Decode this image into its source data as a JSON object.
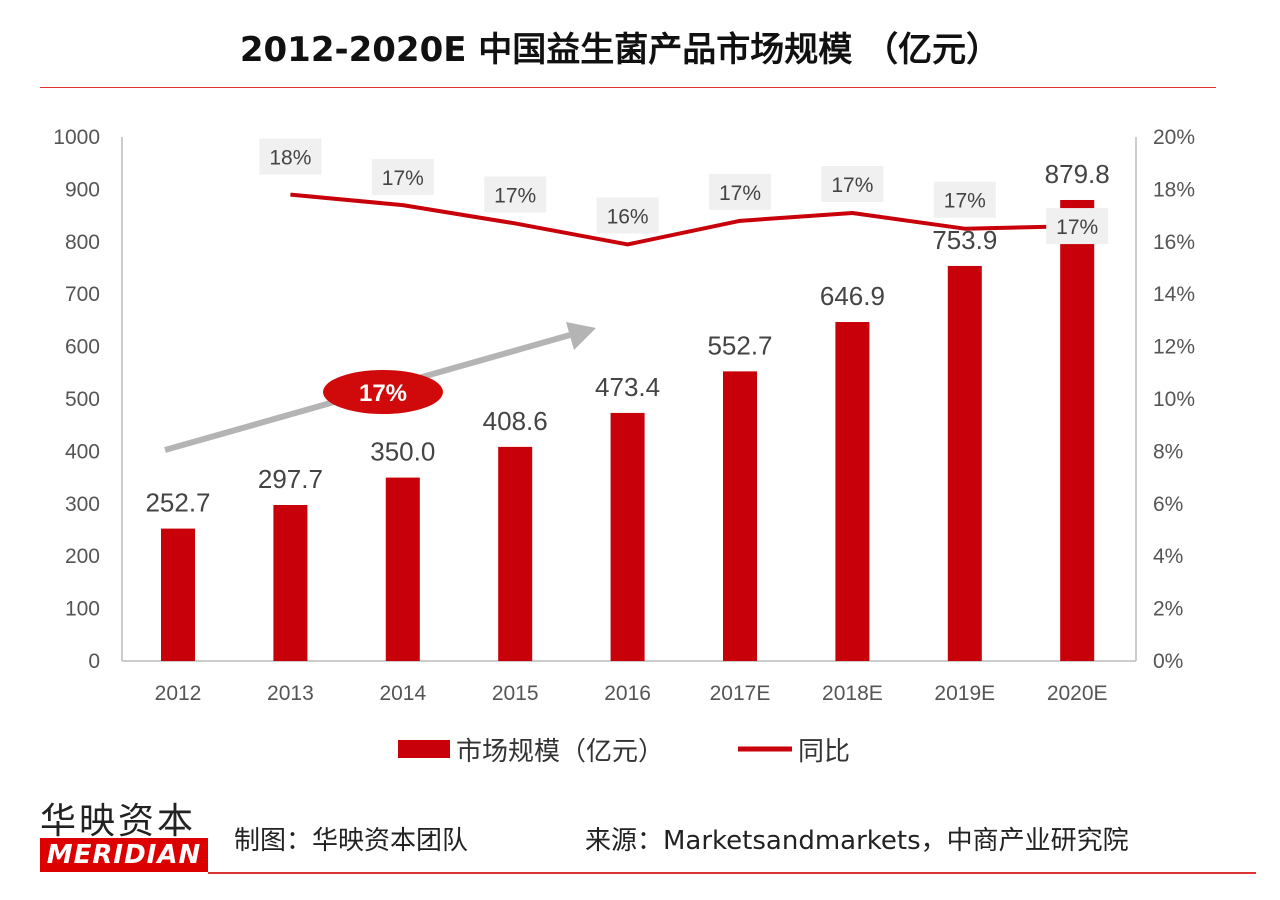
{
  "chart_data": {
    "type": "bar+line",
    "title": "2012-2020E 中国益生菌产品市场规模 （亿元）",
    "categories": [
      "2012",
      "2013",
      "2014",
      "2015",
      "2016",
      "2017E",
      "2018E",
      "2019E",
      "2020E"
    ],
    "series": [
      {
        "name": "市场规模（亿元）",
        "type": "bar",
        "axis": "left",
        "color": "#c8000a",
        "values": [
          252.7,
          297.7,
          350.0,
          408.6,
          473.4,
          552.7,
          646.9,
          753.9,
          879.8
        ],
        "labels": [
          "252.7",
          "297.7",
          "350.0",
          "408.6",
          "473.4",
          "552.7",
          "646.9",
          "753.9",
          "879.8"
        ]
      },
      {
        "name": "同比",
        "type": "line",
        "axis": "right",
        "color": "#c8000a",
        "values": [
          null,
          17.8,
          17.4,
          16.7,
          15.9,
          16.8,
          17.1,
          16.5,
          16.6
        ],
        "labels": [
          "",
          "18%",
          "17%",
          "17%",
          "16%",
          "17%",
          "17%",
          "17%",
          "17%"
        ]
      }
    ],
    "left_axis": {
      "ylim": [
        0,
        1000
      ],
      "ticks": [
        "0",
        "100",
        "200",
        "300",
        "400",
        "500",
        "600",
        "700",
        "800",
        "900",
        "1000"
      ]
    },
    "right_axis": {
      "ylim": [
        0,
        20
      ],
      "ticks": [
        "0%",
        "2%",
        "4%",
        "6%",
        "8%",
        "10%",
        "12%",
        "14%",
        "16%",
        "18%",
        "20%"
      ]
    },
    "annotation": {
      "text": "17%",
      "meaning": "CAGR arrow"
    },
    "grid": false,
    "legend_position": "bottom"
  },
  "footer": {
    "logo_cn": "华映资本",
    "logo_en": "MERIDIAN",
    "credit": "制图：华映资本团队",
    "source": "来源：Marketsandmarkets，中商产业研究院"
  }
}
